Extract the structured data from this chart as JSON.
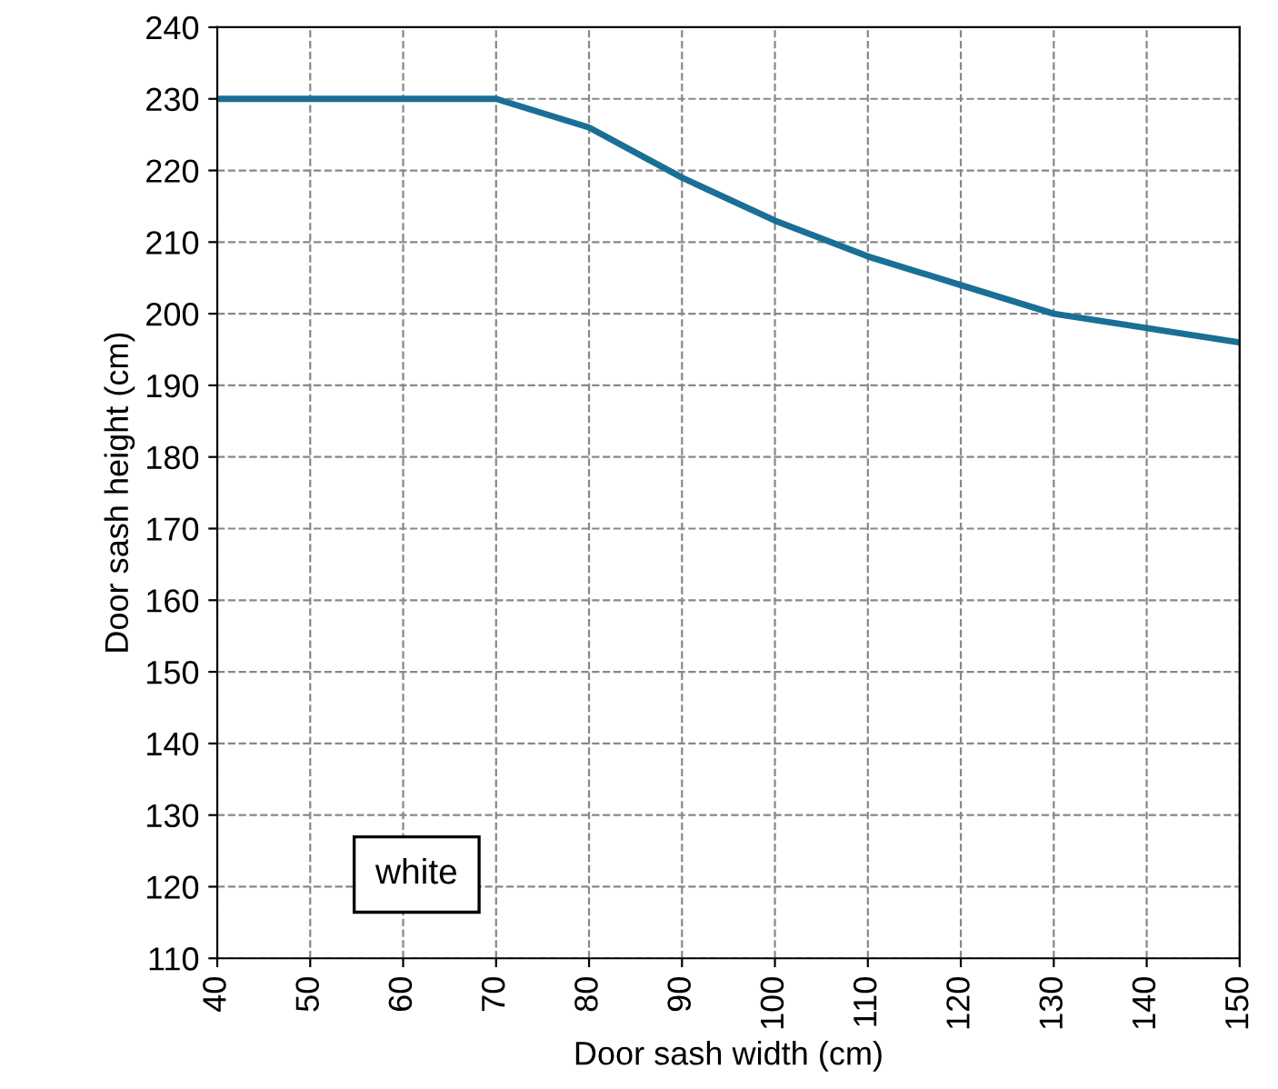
{
  "chart_data": {
    "type": "line",
    "xlabel": "Door sash width (cm)",
    "ylabel": "Door sash height (cm)",
    "x": [
      40,
      70,
      80,
      90,
      100,
      110,
      120,
      130,
      140,
      150
    ],
    "series": [
      {
        "color": "#1a6f96",
        "values": [
          230,
          230,
          226,
          219,
          213,
          208,
          204,
          200,
          198,
          196
        ]
      }
    ],
    "xlim": [
      40,
      150
    ],
    "xticks": [
      40,
      50,
      60,
      70,
      80,
      90,
      100,
      110,
      120,
      130,
      140,
      150
    ],
    "ylim": [
      110,
      240
    ],
    "yticks": [
      110,
      120,
      130,
      140,
      150,
      160,
      170,
      180,
      190,
      200,
      210,
      220,
      230,
      240
    ],
    "grid": true,
    "line_style": "solid",
    "marker": "none",
    "annotations": [
      "white"
    ]
  }
}
